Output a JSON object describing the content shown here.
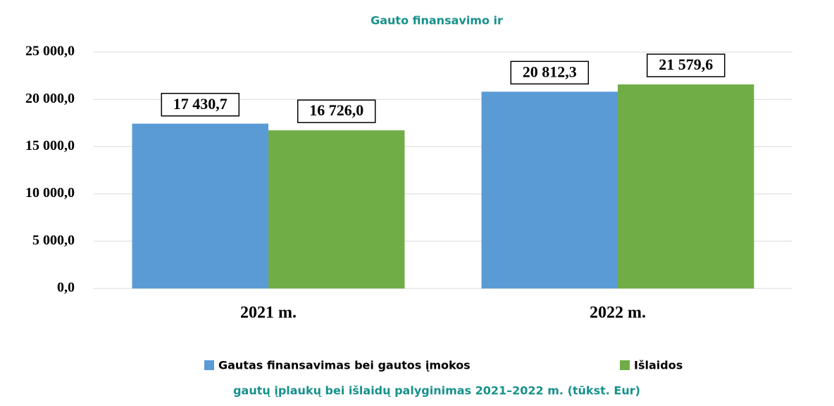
{
  "chart_data": {
    "type": "bar",
    "title": "Gauto finansavimo ir",
    "subtitle": "gautų įplaukų bei išlaidų palyginimas 2021–2022 m. (tūkst. Eur)",
    "categories": [
      "2021 m.",
      "2022 m."
    ],
    "series": [
      {
        "name": "Gautas finansavimas bei gautos įmokos",
        "color": "#5b9bd5",
        "values": [
          17430.7,
          20812.3
        ],
        "value_labels": [
          "17 430,7",
          "20 812,3"
        ]
      },
      {
        "name": "Išlaidos",
        "color": "#70ad47",
        "values": [
          16726.0,
          21579.6
        ],
        "value_labels": [
          "16 726,0",
          "21 579,6"
        ]
      }
    ],
    "ylim": [
      0,
      25000
    ],
    "yticks": [
      {
        "value": 0,
        "label": "0,0"
      },
      {
        "value": 5000,
        "label": "5 000,0"
      },
      {
        "value": 10000,
        "label": "10 000,0"
      },
      {
        "value": 15000,
        "label": "15 000,0"
      },
      {
        "value": 20000,
        "label": "20 000,0"
      },
      {
        "value": 25000,
        "label": "25 000,0"
      }
    ],
    "grid": true,
    "legend": "bottom"
  }
}
